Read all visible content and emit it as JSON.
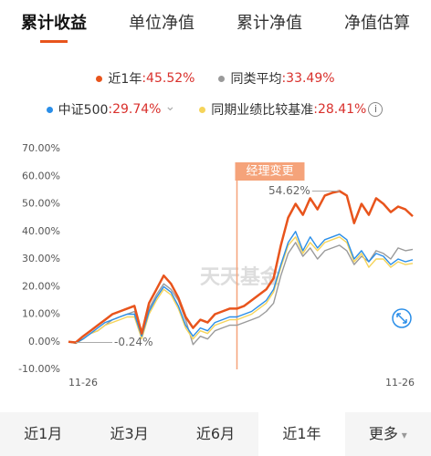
{
  "tabs": {
    "items": [
      "累计收益",
      "单位净值",
      "累计净值",
      "净值估算"
    ],
    "active": 0
  },
  "chart_data": {
    "type": "line",
    "categories": [
      "11-26",
      null,
      null,
      null,
      null,
      null,
      null,
      null,
      null,
      null,
      null,
      null,
      null,
      null,
      null,
      null,
      null,
      null,
      null,
      null,
      null,
      null,
      null,
      null,
      null,
      null,
      null,
      null,
      null,
      null,
      null,
      null,
      null,
      null,
      null,
      null,
      null,
      null,
      null,
      null,
      null,
      null,
      null,
      null,
      null,
      null,
      null,
      "11-26"
    ],
    "series": [
      {
        "name": "近1年",
        "return_label": ":45.52%",
        "color": "#e8541c",
        "values": [
          0,
          -0.24,
          2,
          4,
          6,
          8,
          10,
          11,
          12,
          13,
          3,
          14,
          19,
          24,
          21,
          16,
          9,
          5,
          8,
          7,
          10,
          11,
          12,
          12,
          13,
          15,
          17,
          19,
          23,
          35,
          45,
          50,
          46,
          52,
          48,
          53,
          54,
          54.62,
          53,
          43,
          50,
          46,
          52,
          50,
          47,
          49,
          48,
          45.52
        ]
      },
      {
        "name": "同类平均",
        "return_label": ":33.49%",
        "color": "#9a9a9a",
        "values": [
          0,
          -0.3,
          1,
          3,
          4,
          6,
          8,
          9,
          10,
          11,
          4,
          12,
          17,
          21,
          19,
          15,
          8,
          -1,
          2,
          1,
          4,
          5,
          6,
          6,
          7,
          8,
          9,
          11,
          14,
          24,
          32,
          36,
          31,
          34,
          30,
          33,
          34,
          35,
          33,
          28,
          31,
          29,
          33,
          32,
          30,
          34,
          33,
          33.49
        ]
      },
      {
        "name": "中证500",
        "return_label": ":29.74%",
        "color": "#2a8ee8",
        "values": [
          0,
          -0.5,
          1,
          3,
          5,
          7,
          8,
          9,
          10,
          10,
          2,
          11,
          16,
          20,
          18,
          13,
          6,
          2,
          5,
          4,
          7,
          8,
          9,
          9,
          10,
          11,
          13,
          15,
          19,
          28,
          36,
          40,
          33,
          38,
          34,
          37,
          38,
          39,
          37,
          30,
          33,
          29,
          32,
          31,
          28,
          30,
          29,
          29.74
        ]
      },
      {
        "name": "同期业绩比较基准",
        "return_label": ":28.41%",
        "color": "#f5d45a",
        "values": [
          0,
          -0.6,
          1,
          3,
          4,
          6,
          7,
          8,
          9,
          9,
          1,
          10,
          15,
          19,
          17,
          12,
          5,
          1,
          4,
          3,
          6,
          7,
          8,
          8,
          9,
          10,
          12,
          14,
          18,
          27,
          35,
          38,
          32,
          36,
          33,
          36,
          37,
          38,
          36,
          29,
          32,
          27,
          30,
          30,
          27,
          29,
          28,
          28.41
        ]
      }
    ],
    "ylim": [
      -10,
      70
    ],
    "yticks": [
      {
        "value": -10,
        "label": "-10.00%"
      },
      {
        "value": 0,
        "label": "0.00%"
      },
      {
        "value": 10,
        "label": "10.00%"
      },
      {
        "value": 20,
        "label": "20.00%"
      },
      {
        "value": 30,
        "label": "30.00%"
      },
      {
        "value": 40,
        "label": "40.00%"
      },
      {
        "value": 50,
        "label": "50.00%"
      },
      {
        "value": 60,
        "label": "60.00%"
      },
      {
        "value": 70,
        "label": "70.00%"
      }
    ],
    "grid": false,
    "value_labels": [
      {
        "index": 37,
        "text": "54.62%"
      },
      {
        "index": 1,
        "text": "-0.24%"
      }
    ],
    "annotations": [
      {
        "index": 23,
        "text": "经理变更"
      }
    ],
    "watermark": "天天基金"
  },
  "periods": {
    "items": [
      "近1月",
      "近3月",
      "近6月",
      "近1年",
      "更多"
    ],
    "active": 3
  }
}
